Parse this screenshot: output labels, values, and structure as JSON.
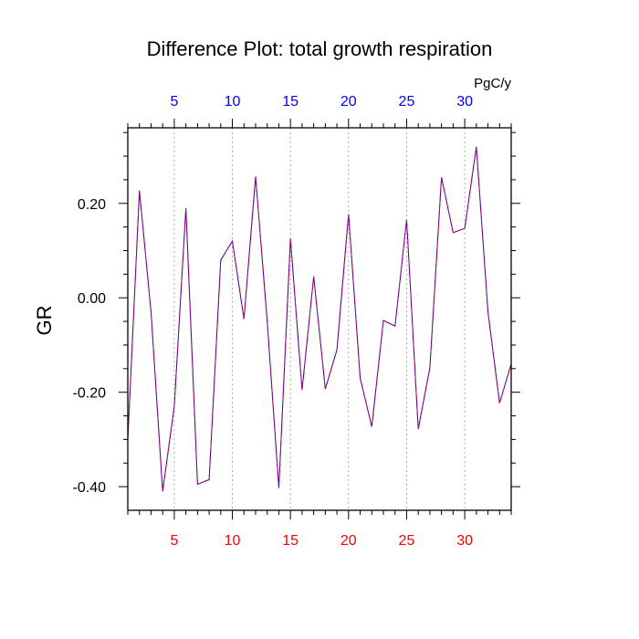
{
  "chart_data": {
    "type": "line",
    "title": "Difference Plot: total growth respiration",
    "units_label": "PgC/y",
    "ylabel": "GR",
    "xlabel": "",
    "xlim": [
      1,
      34
    ],
    "ylim": [
      -0.45,
      0.36
    ],
    "x_ticks_major": [
      5,
      10,
      15,
      20,
      25,
      30
    ],
    "x_tick_labels_bottom": [
      "5",
      "10",
      "15",
      "20",
      "25",
      "30"
    ],
    "x_tick_labels_top": [
      "5",
      "10",
      "15",
      "20",
      "25",
      "30"
    ],
    "y_ticks_major": [
      -0.4,
      -0.2,
      0.0,
      0.2
    ],
    "y_tick_labels": [
      "-0.40",
      "-0.20",
      "0.00",
      "0.20"
    ],
    "y_ticks_minor": [
      -0.35,
      -0.3,
      -0.25,
      -0.15,
      -0.1,
      -0.05,
      0.05,
      0.1,
      0.15,
      0.25,
      0.3,
      0.35
    ],
    "vertical_gridlines": true,
    "colors": {
      "bottom_tick_labels": "#ff0000",
      "top_tick_labels": "#0000ff",
      "series_a": "#0000ff",
      "series_b": "#ff0000",
      "grid": "#999999",
      "axis": "#000000"
    },
    "series": [
      {
        "name": "difference",
        "x": [
          1,
          2,
          3,
          4,
          5,
          6,
          7,
          8,
          9,
          10,
          11,
          12,
          13,
          14,
          15,
          16,
          17,
          18,
          19,
          20,
          21,
          22,
          23,
          24,
          25,
          26,
          27,
          28,
          29,
          30,
          31,
          32,
          33,
          34
        ],
        "values": [
          -0.3,
          0.227,
          -0.03,
          -0.41,
          -0.23,
          0.19,
          -0.395,
          -0.385,
          0.08,
          0.12,
          -0.045,
          0.257,
          -0.05,
          -0.403,
          0.125,
          -0.195,
          0.045,
          -0.193,
          -0.11,
          0.177,
          -0.17,
          -0.273,
          -0.048,
          -0.06,
          0.165,
          -0.278,
          -0.148,
          0.255,
          0.138,
          0.147,
          0.32,
          -0.03,
          -0.223,
          -0.14
        ]
      }
    ]
  }
}
